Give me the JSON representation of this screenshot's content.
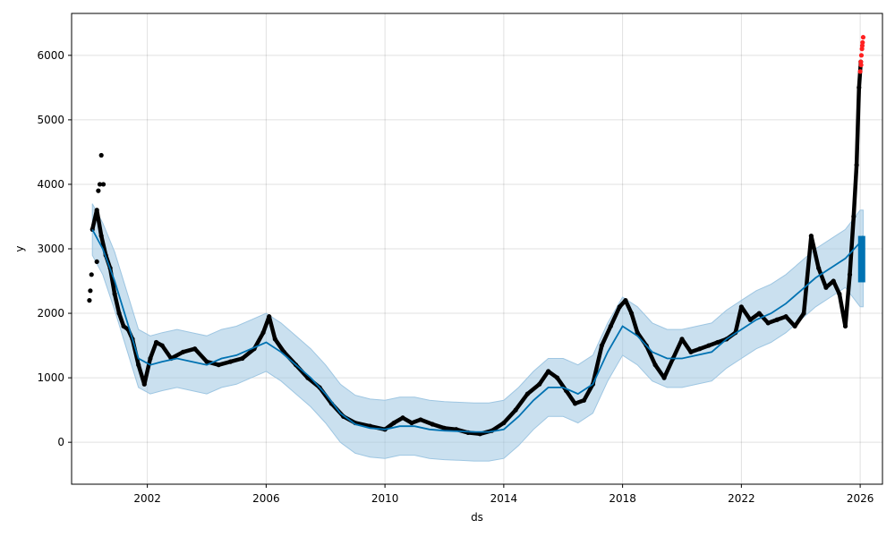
{
  "chart_data": {
    "type": "scatter",
    "title": "",
    "xlabel": "ds",
    "ylabel": "y",
    "grid": true,
    "colors": {
      "observed": "#000000",
      "future_observed": "#ff2020",
      "forecast_line": "#0072B2",
      "uncertainty_band": "#9ec6e2",
      "forecast_bar": "#0072B2"
    },
    "xlim": [
      1999.45,
      2026.75
    ],
    "ylim": [
      -650,
      6650
    ],
    "x_ticks": [
      {
        "value": 2002,
        "label": "2002"
      },
      {
        "value": 2006,
        "label": "2006"
      },
      {
        "value": 2010,
        "label": "2010"
      },
      {
        "value": 2014,
        "label": "2014"
      },
      {
        "value": 2018,
        "label": "2018"
      },
      {
        "value": 2022,
        "label": "2022"
      },
      {
        "value": 2026,
        "label": "2026"
      }
    ],
    "y_ticks": [
      {
        "value": 0,
        "label": "0"
      },
      {
        "value": 1000,
        "label": "1000"
      },
      {
        "value": 2000,
        "label": "2000"
      },
      {
        "value": 3000,
        "label": "3000"
      },
      {
        "value": 4000,
        "label": "4000"
      },
      {
        "value": 5000,
        "label": "5000"
      },
      {
        "value": 6000,
        "label": "6000"
      }
    ],
    "series": [
      {
        "kind": "observed",
        "x": [
          2000.15,
          2000.3,
          2000.45,
          2000.6,
          2000.75,
          2000.9,
          2001.05,
          2001.2,
          2001.35,
          2001.5,
          2001.7,
          2001.9,
          2002.1,
          2002.3,
          2002.5,
          2002.8,
          2003.2,
          2003.6,
          2004.0,
          2004.4,
          2004.8,
          2005.2,
          2005.6,
          2005.9,
          2006.1,
          2006.3,
          2006.6,
          2007.0,
          2007.4,
          2007.8,
          2008.2,
          2008.6,
          2009.0,
          2009.5,
          2010.0,
          2010.3,
          2010.6,
          2010.9,
          2011.2,
          2011.6,
          2012.0,
          2012.4,
          2012.8,
          2013.2,
          2013.6,
          2014.0,
          2014.4,
          2014.8,
          2015.2,
          2015.5,
          2015.8,
          2016.1,
          2016.4,
          2016.7,
          2017.0,
          2017.3,
          2017.6,
          2017.9,
          2018.1,
          2018.3,
          2018.5,
          2018.8,
          2019.1,
          2019.4,
          2019.7,
          2020.0,
          2020.3,
          2020.6,
          2020.9,
          2021.2,
          2021.5,
          2021.8,
          2022.0,
          2022.3,
          2022.6,
          2022.9,
          2023.2,
          2023.5,
          2023.8,
          2024.1,
          2024.35,
          2024.6,
          2024.85,
          2025.1,
          2025.3,
          2025.5,
          2025.65,
          2025.78,
          2025.88,
          2025.96,
          2026.02
        ],
        "y": [
          3300,
          3600,
          3200,
          2900,
          2700,
          2300,
          2000,
          1800,
          1750,
          1600,
          1200,
          900,
          1300,
          1550,
          1500,
          1300,
          1400,
          1450,
          1250,
          1200,
          1250,
          1300,
          1450,
          1700,
          1950,
          1600,
          1400,
          1200,
          1000,
          850,
          600,
          400,
          300,
          250,
          200,
          300,
          380,
          300,
          350,
          280,
          220,
          200,
          150,
          130,
          180,
          300,
          500,
          750,
          900,
          1100,
          1000,
          800,
          600,
          650,
          900,
          1500,
          1800,
          2100,
          2200,
          2000,
          1700,
          1500,
          1200,
          1000,
          1300,
          1600,
          1400,
          1450,
          1500,
          1550,
          1600,
          1700,
          2100,
          1900,
          2000,
          1850,
          1900,
          1950,
          1800,
          2000,
          3200,
          2700,
          2400,
          2500,
          2300,
          1800,
          2600,
          3500,
          4300,
          5500,
          5900
        ]
      },
      {
        "kind": "observed_outliers",
        "x": [
          2000.05,
          2000.08,
          2000.12,
          2000.35,
          2000.4,
          2000.45,
          2000.52,
          2000.3
        ],
        "y": [
          2200,
          2350,
          2600,
          3900,
          4000,
          4450,
          4000,
          2800
        ]
      },
      {
        "kind": "future_observed",
        "x": [
          2026.0,
          2026.02,
          2026.04,
          2026.06,
          2026.08,
          2026.1,
          2026.03,
          2026.07
        ],
        "y": [
          5750,
          5900,
          6000,
          6100,
          6200,
          6280,
          5850,
          6150
        ]
      },
      {
        "kind": "forecast",
        "x": [
          2000.15,
          2000.5,
          2000.9,
          2001.3,
          2001.7,
          2002.1,
          2002.5,
          2003.0,
          2003.5,
          2004.0,
          2004.5,
          2005.0,
          2005.5,
          2006.0,
          2006.5,
          2007.0,
          2007.5,
          2008.0,
          2008.5,
          2009.0,
          2009.5,
          2010.0,
          2010.5,
          2011.0,
          2011.5,
          2012.0,
          2012.5,
          2013.0,
          2013.5,
          2014.0,
          2014.5,
          2015.0,
          2015.5,
          2016.0,
          2016.5,
          2017.0,
          2017.5,
          2018.0,
          2018.5,
          2019.0,
          2019.5,
          2020.0,
          2020.5,
          2021.0,
          2021.5,
          2022.0,
          2022.5,
          2023.0,
          2023.5,
          2024.0,
          2024.5,
          2025.0,
          2025.5,
          2026.0,
          2026.1
        ],
        "y": [
          3300,
          3000,
          2500,
          1900,
          1300,
          1200,
          1250,
          1300,
          1250,
          1200,
          1300,
          1350,
          1450,
          1550,
          1400,
          1200,
          1000,
          750,
          450,
          280,
          220,
          200,
          250,
          250,
          200,
          180,
          170,
          160,
          160,
          200,
          400,
          650,
          850,
          850,
          750,
          900,
          1400,
          1800,
          1650,
          1400,
          1300,
          1300,
          1350,
          1400,
          1600,
          1750,
          1900,
          2000,
          2150,
          2350,
          2550,
          2700,
          2850,
          3100,
          3200
        ]
      }
    ],
    "uncertainty_band": {
      "x": [
        2000.15,
        2000.5,
        2000.9,
        2001.3,
        2001.7,
        2002.1,
        2002.5,
        2003.0,
        2003.5,
        2004.0,
        2004.5,
        2005.0,
        2005.5,
        2006.0,
        2006.5,
        2007.0,
        2007.5,
        2008.0,
        2008.5,
        2009.0,
        2009.5,
        2010.0,
        2010.5,
        2011.0,
        2011.5,
        2012.0,
        2012.5,
        2013.0,
        2013.5,
        2014.0,
        2014.5,
        2015.0,
        2015.5,
        2016.0,
        2016.5,
        2017.0,
        2017.5,
        2018.0,
        2018.5,
        2019.0,
        2019.5,
        2020.0,
        2020.5,
        2021.0,
        2021.5,
        2022.0,
        2022.5,
        2023.0,
        2023.5,
        2024.0,
        2024.5,
        2025.0,
        2025.5,
        2026.0,
        2026.1
      ],
      "lower": [
        2900,
        2600,
        2050,
        1450,
        850,
        750,
        800,
        850,
        800,
        750,
        850,
        900,
        1000,
        1100,
        950,
        750,
        550,
        300,
        0,
        -170,
        -230,
        -250,
        -200,
        -200,
        -250,
        -270,
        -280,
        -290,
        -290,
        -250,
        -50,
        200,
        400,
        400,
        300,
        450,
        950,
        1350,
        1200,
        950,
        850,
        850,
        900,
        950,
        1150,
        1300,
        1450,
        1550,
        1700,
        1900,
        2100,
        2250,
        2400,
        2100,
        2100
      ],
      "upper": [
        3700,
        3400,
        2950,
        2350,
        1750,
        1650,
        1700,
        1750,
        1700,
        1650,
        1750,
        1800,
        1900,
        2000,
        1850,
        1650,
        1450,
        1200,
        900,
        730,
        670,
        650,
        700,
        700,
        650,
        630,
        620,
        610,
        610,
        650,
        850,
        1100,
        1300,
        1300,
        1200,
        1350,
        1850,
        2250,
        2100,
        1850,
        1750,
        1750,
        1800,
        1850,
        2050,
        2200,
        2350,
        2450,
        2600,
        2800,
        3000,
        3150,
        3300,
        3600,
        3600
      ]
    },
    "forecast_bar": {
      "x": 2026.05,
      "y_low": 2480,
      "y_high": 3200
    }
  }
}
